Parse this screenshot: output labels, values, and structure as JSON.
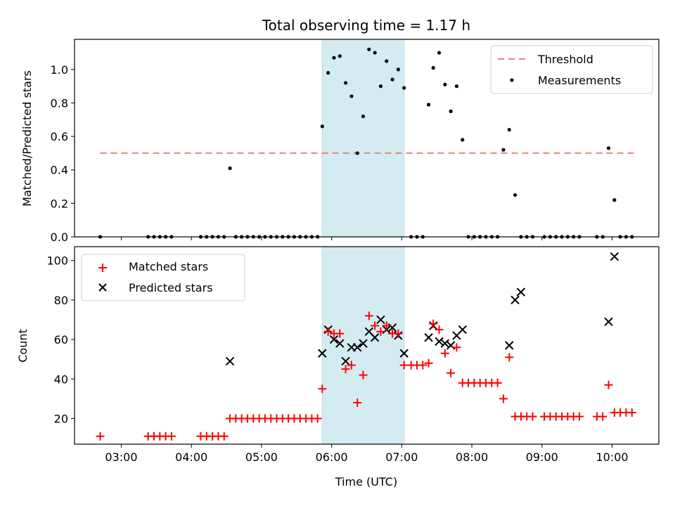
{
  "title": "Total observing time = 1.17 h",
  "colors": {
    "threshold": "#f08080",
    "measurement": "#000000",
    "matched": "#ff0000",
    "predicted": "#000000",
    "span": "#add8e6"
  },
  "top_panel": {
    "ylabel": "Matched/Predicted stars",
    "legend": {
      "threshold_label": "Threshold",
      "measurements_label": "Measurements",
      "placement": "upper right"
    }
  },
  "bottom_panel": {
    "ylabel": "Count",
    "xlabel": "Time (UTC)",
    "legend": {
      "matched_label": "Matched stars",
      "predicted_label": "Predicted stars",
      "placement": "upper left"
    }
  },
  "chart_data": [
    {
      "type": "scatter",
      "panel": "top",
      "ylabel": "Matched/Predicted stars",
      "xlim": [
        "02:20",
        "10:40"
      ],
      "ylim": [
        0,
        1.18
      ],
      "yticks": [
        0.0,
        0.2,
        0.4,
        0.6,
        0.8,
        1.0
      ],
      "ytick_labels": [
        "0.0",
        "0.2",
        "0.4",
        "0.6",
        "0.8",
        "1.0"
      ],
      "threshold": {
        "name": "Threshold",
        "y": 0.5,
        "x_range": [
          "02:42",
          "10:20"
        ],
        "style": "dashed"
      },
      "shaded_span": [
        "05:52",
        "07:02"
      ],
      "grid": false,
      "series": [
        {
          "name": "Measurements",
          "x": [
            "02:42",
            "03:23",
            "03:28",
            "03:33",
            "03:38",
            "03:43",
            "04:08",
            "04:13",
            "04:18",
            "04:23",
            "04:28",
            "04:33",
            "04:38",
            "04:43",
            "04:48",
            "04:53",
            "04:58",
            "05:03",
            "05:08",
            "05:13",
            "05:18",
            "05:23",
            "05:28",
            "05:33",
            "05:38",
            "05:43",
            "05:48",
            "05:52",
            "05:57",
            "06:02",
            "06:07",
            "06:12",
            "06:17",
            "06:22",
            "06:27",
            "06:32",
            "06:37",
            "06:42",
            "06:47",
            "06:52",
            "06:57",
            "07:02",
            "07:08",
            "07:13",
            "07:18",
            "07:23",
            "07:27",
            "07:32",
            "07:37",
            "07:42",
            "07:47",
            "07:52",
            "07:57",
            "08:02",
            "08:07",
            "08:12",
            "08:17",
            "08:22",
            "08:27",
            "08:32",
            "08:37",
            "08:42",
            "08:47",
            "08:52",
            "09:02",
            "09:07",
            "09:12",
            "09:17",
            "09:22",
            "09:27",
            "09:32",
            "09:47",
            "09:52",
            "09:57",
            "10:02",
            "10:07",
            "10:12",
            "10:17"
          ],
          "y": [
            0,
            0,
            0,
            0,
            0,
            0,
            0,
            0,
            0,
            0,
            0,
            0.41,
            0,
            0,
            0,
            0,
            0,
            0,
            0,
            0,
            0,
            0,
            0,
            0,
            0,
            0,
            0,
            0.66,
            0.98,
            1.07,
            1.08,
            0.92,
            0.84,
            0.5,
            0.72,
            1.12,
            1.1,
            0.9,
            1.05,
            0.94,
            1.0,
            0.89,
            0,
            0,
            0,
            0.79,
            1.01,
            1.1,
            0.91,
            0.75,
            0.9,
            0.58,
            0,
            0,
            0,
            0,
            0,
            0,
            0.52,
            0.64,
            0.25,
            0,
            0,
            0,
            0,
            0,
            0,
            0,
            0,
            0,
            0,
            0,
            0,
            0.53,
            0.22,
            0,
            0,
            0
          ]
        }
      ]
    },
    {
      "type": "scatter",
      "panel": "bottom",
      "xlabel": "Time (UTC)",
      "ylabel": "Count",
      "xlim": [
        "02:20",
        "10:40"
      ],
      "ylim": [
        7,
        107
      ],
      "yticks": [
        20,
        40,
        60,
        80,
        100
      ],
      "ytick_labels": [
        "20",
        "40",
        "60",
        "80",
        "100"
      ],
      "xticks": [
        "03:00",
        "04:00",
        "05:00",
        "06:00",
        "07:00",
        "08:00",
        "09:00",
        "10:00"
      ],
      "xtick_labels": [
        "03:00",
        "04:00",
        "05:00",
        "06:00",
        "07:00",
        "08:00",
        "09:00",
        "10:00"
      ],
      "shaded_span": [
        "05:52",
        "07:02"
      ],
      "grid": false,
      "series": [
        {
          "name": "Matched stars",
          "marker": "plus",
          "x": [
            "02:42",
            "03:23",
            "03:28",
            "03:33",
            "03:38",
            "03:43",
            "04:08",
            "04:13",
            "04:18",
            "04:23",
            "04:28",
            "04:33",
            "04:38",
            "04:43",
            "04:48",
            "04:53",
            "04:58",
            "05:03",
            "05:08",
            "05:13",
            "05:18",
            "05:23",
            "05:28",
            "05:33",
            "05:38",
            "05:43",
            "05:48",
            "05:52",
            "05:57",
            "06:02",
            "06:07",
            "06:12",
            "06:17",
            "06:22",
            "06:27",
            "06:32",
            "06:37",
            "06:42",
            "06:47",
            "06:52",
            "06:57",
            "07:02",
            "07:08",
            "07:13",
            "07:18",
            "07:23",
            "07:27",
            "07:32",
            "07:37",
            "07:42",
            "07:47",
            "07:52",
            "07:57",
            "08:02",
            "08:07",
            "08:12",
            "08:17",
            "08:22",
            "08:27",
            "08:32",
            "08:37",
            "08:42",
            "08:47",
            "08:52",
            "09:02",
            "09:07",
            "09:12",
            "09:17",
            "09:22",
            "09:27",
            "09:32",
            "09:47",
            "09:52",
            "09:57",
            "10:02",
            "10:07",
            "10:12",
            "10:17"
          ],
          "y": [
            11,
            11,
            11,
            11,
            11,
            11,
            11,
            11,
            11,
            11,
            11,
            20,
            20,
            20,
            20,
            20,
            20,
            20,
            20,
            20,
            20,
            20,
            20,
            20,
            20,
            20,
            20,
            35,
            64,
            63,
            63,
            45,
            47,
            28,
            42,
            72,
            67,
            64,
            67,
            63,
            63,
            47,
            47,
            47,
            47,
            48,
            68,
            65,
            53,
            43,
            56,
            38,
            38,
            38,
            38,
            38,
            38,
            38,
            30,
            51,
            21,
            21,
            21,
            21,
            21,
            21,
            21,
            21,
            21,
            21,
            21,
            21,
            21,
            37,
            23,
            23,
            23,
            23
          ]
        },
        {
          "name": "Predicted stars",
          "marker": "x",
          "x": [
            "04:33",
            "05:52",
            "05:57",
            "06:02",
            "06:07",
            "06:12",
            "06:17",
            "06:22",
            "06:27",
            "06:32",
            "06:37",
            "06:42",
            "06:47",
            "06:52",
            "06:57",
            "07:02",
            "07:23",
            "07:27",
            "07:32",
            "07:37",
            "07:42",
            "07:47",
            "07:52",
            "08:32",
            "08:37",
            "08:42",
            "09:57",
            "10:02"
          ],
          "y": [
            49,
            53,
            65,
            60,
            58,
            49,
            56,
            56,
            58,
            64,
            61,
            70,
            65,
            66,
            62,
            53,
            61,
            67,
            59,
            58,
            57,
            62,
            65,
            57,
            80,
            84,
            69,
            102
          ]
        }
      ]
    }
  ]
}
